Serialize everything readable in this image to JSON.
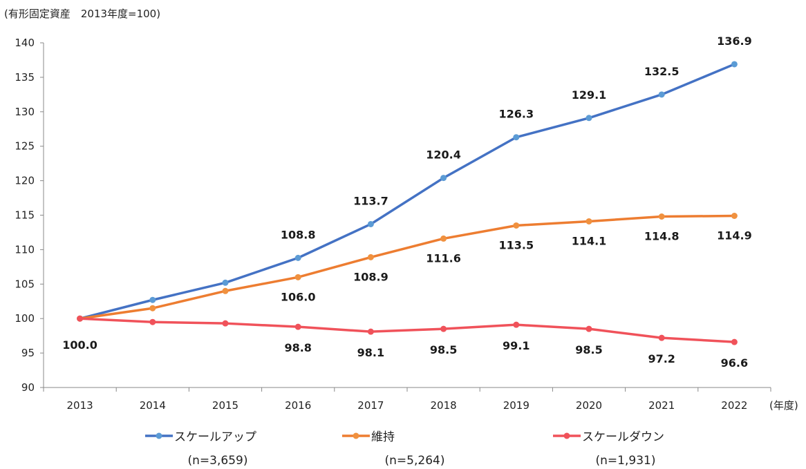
{
  "chart_data": {
    "type": "line",
    "title": "(有形固定資産　2013年度=100)",
    "xlabel": "(年度)",
    "ylabel": "",
    "ylim": [
      90,
      140
    ],
    "yticks": [
      90,
      95,
      100,
      105,
      110,
      115,
      120,
      125,
      130,
      135,
      140
    ],
    "categories": [
      "2013",
      "2014",
      "2015",
      "2016",
      "2017",
      "2018",
      "2019",
      "2020",
      "2021",
      "2022"
    ],
    "grid": false,
    "legend_position": "bottom",
    "series": [
      {
        "name": "スケールアップ",
        "n": "(n=3,659)",
        "color": "#4472C4",
        "marker_color": "#5B9BD5",
        "values": [
          100.0,
          102.7,
          105.2,
          108.8,
          113.7,
          120.4,
          126.3,
          129.1,
          132.5,
          136.9
        ],
        "labels": [
          null,
          null,
          null,
          "108.8",
          "113.7",
          "120.4",
          "126.3",
          "129.1",
          "132.5",
          "136.9"
        ]
      },
      {
        "name": "維持",
        "n": "(n=5,264)",
        "color": "#ED7D31",
        "marker_color": "#F0913F",
        "values": [
          100.0,
          101.5,
          104.0,
          106.0,
          108.9,
          111.6,
          113.5,
          114.1,
          114.8,
          114.9
        ],
        "labels": [
          null,
          null,
          null,
          "106.0",
          "108.9",
          "111.6",
          "113.5",
          "114.1",
          "114.8",
          "114.9"
        ]
      },
      {
        "name": "スケールダウン",
        "n": "(n=1,931)",
        "color": "#F0525A",
        "marker_color": "#F0525A",
        "values": [
          100.0,
          99.5,
          99.3,
          98.8,
          98.1,
          98.5,
          99.1,
          98.5,
          97.2,
          96.6
        ],
        "labels": [
          "100.0",
          null,
          null,
          "98.8",
          "98.1",
          "98.5",
          "99.1",
          "98.5",
          "97.2",
          "96.6"
        ]
      }
    ]
  }
}
